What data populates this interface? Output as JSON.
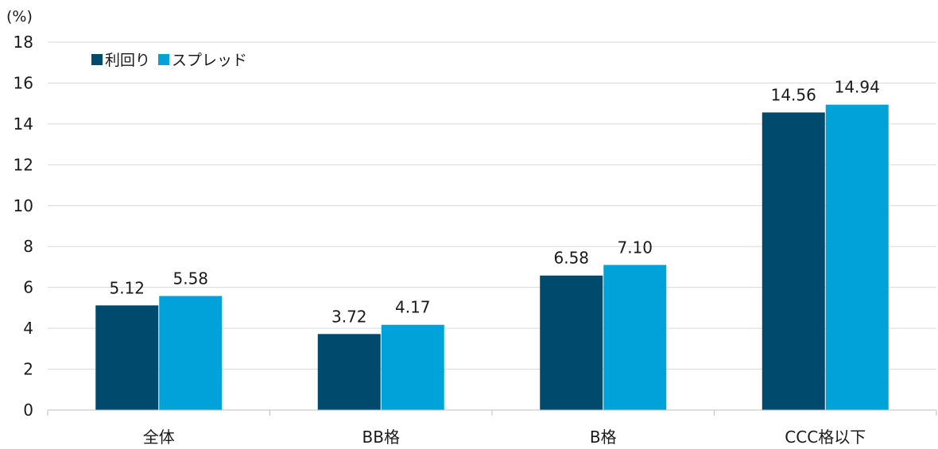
{
  "chart_data": {
    "type": "bar",
    "title": "",
    "xlabel": "",
    "ylabel": "(%)",
    "ylim": [
      0,
      18
    ],
    "yticks": [
      0,
      2,
      4,
      6,
      8,
      10,
      12,
      14,
      16,
      18
    ],
    "grid": true,
    "legend_position": "top-left",
    "categories": [
      "全体",
      "BB格",
      "B格",
      "CCC格以下"
    ],
    "series": [
      {
        "name": "利回り",
        "color": "#004a6e",
        "values": [
          5.12,
          3.72,
          6.58,
          14.56
        ]
      },
      {
        "name": "スプレッド",
        "color": "#00a3d9",
        "values": [
          5.58,
          4.17,
          7.1,
          14.94
        ]
      }
    ],
    "data_labels": [
      [
        "5.12",
        "3.72",
        "6.58",
        "14.56"
      ],
      [
        "5.58",
        "4.17",
        "7.10",
        "14.94"
      ]
    ]
  }
}
